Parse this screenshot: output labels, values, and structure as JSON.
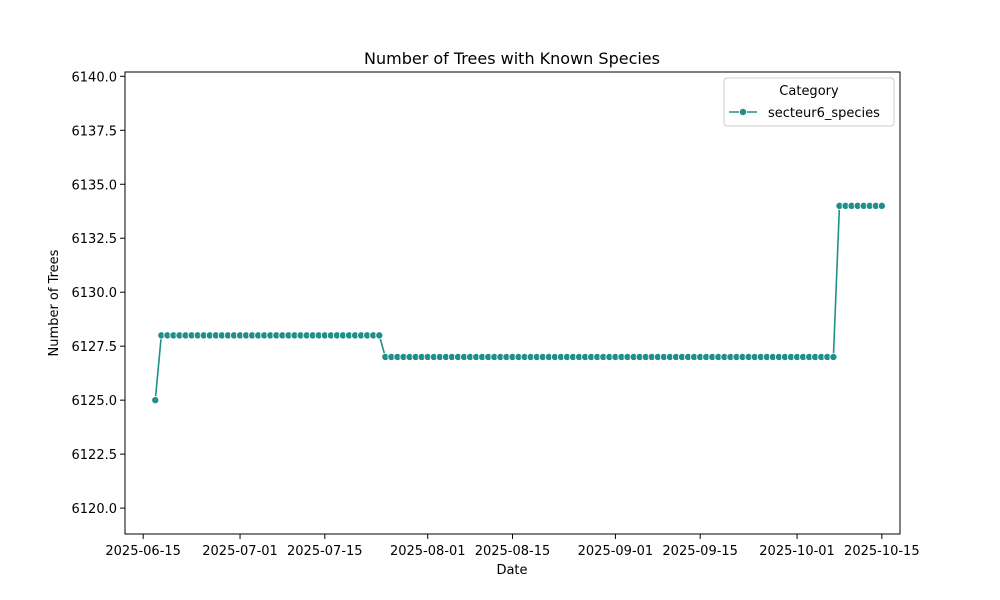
{
  "chart_data": {
    "type": "line",
    "title": "Number of Trees with Known Species",
    "xlabel": "Date",
    "ylabel": "Number of Trees",
    "xlim": [
      "2025-06-12",
      "2025-10-18"
    ],
    "ylim": [
      6118.8,
      6140.2
    ],
    "x_ticks": [
      "2025-06-15",
      "2025-07-01",
      "2025-07-15",
      "2025-08-01",
      "2025-08-15",
      "2025-09-01",
      "2025-09-15",
      "2025-10-01",
      "2025-10-15"
    ],
    "y_ticks": [
      "6120.0",
      "6122.5",
      "6125.0",
      "6127.5",
      "6130.0",
      "6132.5",
      "6135.0",
      "6137.5",
      "6140.0"
    ],
    "grid": false,
    "legend": {
      "title": "Category",
      "placement": "upper-right"
    },
    "series": [
      {
        "name": "secteur6_species",
        "color": "#1f8f89",
        "marker": "circle",
        "segments": [
          {
            "from": "2025-06-17",
            "to": "2025-06-17",
            "value": 6125
          },
          {
            "from": "2025-06-18",
            "to": "2025-07-24",
            "value": 6128
          },
          {
            "from": "2025-07-25",
            "to": "2025-10-07",
            "value": 6127
          },
          {
            "from": "2025-10-08",
            "to": "2025-10-15",
            "value": 6134
          }
        ]
      }
    ]
  }
}
